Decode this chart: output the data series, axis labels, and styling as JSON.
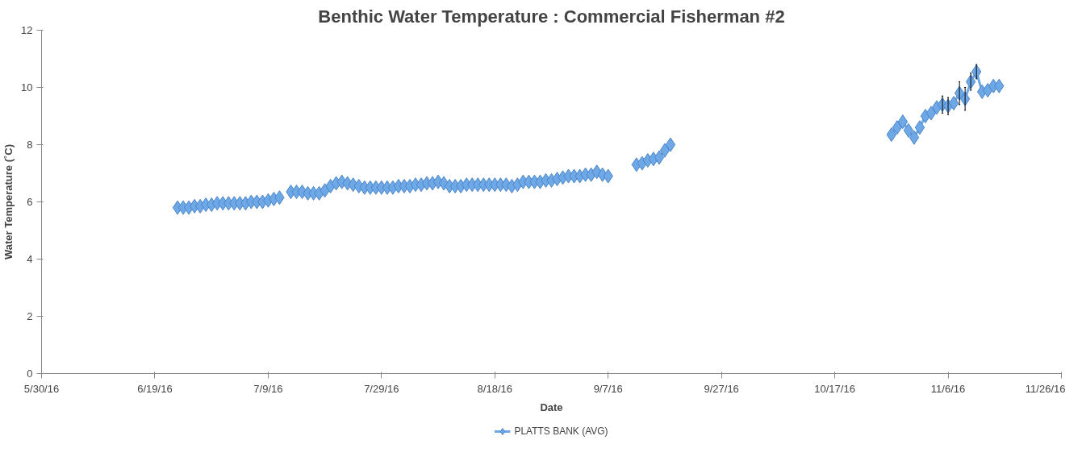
{
  "chart_data": {
    "type": "line",
    "title": "Benthic Water Temperature : Commercial Fisherman #2",
    "xlabel": "Date",
    "ylabel": "Water Temperature (˚C)",
    "xlim": [
      "2016-05-30",
      "2016-11-26"
    ],
    "xticks": [
      {
        "value": "2016-05-30",
        "label": "5/30/16"
      },
      {
        "value": "2016-06-19",
        "label": "6/19/16"
      },
      {
        "value": "2016-07-09",
        "label": "7/9/16"
      },
      {
        "value": "2016-07-29",
        "label": "7/29/16"
      },
      {
        "value": "2016-08-18",
        "label": "8/18/16"
      },
      {
        "value": "2016-09-07",
        "label": "9/7/16"
      },
      {
        "value": "2016-09-27",
        "label": "9/27/16"
      },
      {
        "value": "2016-10-17",
        "label": "10/17/16"
      },
      {
        "value": "2016-11-06",
        "label": "11/6/16"
      },
      {
        "value": "2016-11-26",
        "label": "11/26/16"
      }
    ],
    "ylim": [
      0,
      12
    ],
    "yticks": [
      0,
      2,
      4,
      6,
      8,
      10,
      12
    ],
    "grid": false,
    "legend": "bottom",
    "marker": "diamond",
    "line_style": "solid",
    "series": [
      {
        "name": "PLATTS BANK (AVG)",
        "color": "#6fa8e6",
        "x": [
          "2016-06-23",
          "2016-06-24",
          "2016-06-25",
          "2016-06-26",
          "2016-06-27",
          "2016-06-28",
          "2016-06-29",
          "2016-06-30",
          "2016-07-01",
          "2016-07-02",
          "2016-07-03",
          "2016-07-04",
          "2016-07-05",
          "2016-07-06",
          "2016-07-07",
          "2016-07-08",
          "2016-07-09",
          "2016-07-10",
          "2016-07-11",
          "2016-07-12",
          "2016-07-13",
          "2016-07-14",
          "2016-07-15",
          "2016-07-16",
          "2016-07-17",
          "2016-07-18",
          "2016-07-19",
          "2016-07-20",
          "2016-07-21",
          "2016-07-22",
          "2016-07-23",
          "2016-07-24",
          "2016-07-25",
          "2016-07-26",
          "2016-07-27",
          "2016-07-28",
          "2016-07-29",
          "2016-07-30",
          "2016-07-31",
          "2016-08-01",
          "2016-08-02",
          "2016-08-03",
          "2016-08-04",
          "2016-08-05",
          "2016-08-06",
          "2016-08-07",
          "2016-08-08",
          "2016-08-09",
          "2016-08-10",
          "2016-08-11",
          "2016-08-12",
          "2016-08-13",
          "2016-08-14",
          "2016-08-15",
          "2016-08-16",
          "2016-08-17",
          "2016-08-18",
          "2016-08-19",
          "2016-08-20",
          "2016-08-21",
          "2016-08-22",
          "2016-08-23",
          "2016-08-24",
          "2016-08-25",
          "2016-08-26",
          "2016-08-27",
          "2016-08-28",
          "2016-08-29",
          "2016-08-30",
          "2016-08-31",
          "2016-09-01",
          "2016-09-02",
          "2016-09-03",
          "2016-09-04",
          "2016-09-05",
          "2016-09-06",
          "2016-09-07",
          "2016-09-09",
          "2016-09-12",
          "2016-09-13",
          "2016-09-14",
          "2016-09-15",
          "2016-09-16",
          "2016-09-17",
          "2016-09-18",
          "2016-10-20",
          "2016-10-27",
          "2016-10-28",
          "2016-10-29",
          "2016-10-30",
          "2016-10-31",
          "2016-11-01",
          "2016-11-02",
          "2016-11-03",
          "2016-11-04",
          "2016-11-05",
          "2016-11-06",
          "2016-11-07",
          "2016-11-08",
          "2016-11-09",
          "2016-11-10",
          "2016-11-11",
          "2016-11-12",
          "2016-11-13",
          "2016-11-14",
          "2016-11-15"
        ],
        "values": [
          5.8,
          5.8,
          5.8,
          5.85,
          5.85,
          5.9,
          5.9,
          5.95,
          5.95,
          5.95,
          5.95,
          5.95,
          5.95,
          6.0,
          6.0,
          6.0,
          6.05,
          6.1,
          6.15,
          null,
          6.35,
          6.35,
          6.35,
          6.3,
          6.3,
          6.3,
          6.4,
          6.55,
          6.65,
          6.7,
          6.65,
          6.6,
          6.55,
          6.5,
          6.5,
          6.5,
          6.5,
          6.5,
          6.5,
          6.55,
          6.55,
          6.55,
          6.6,
          6.6,
          6.65,
          6.65,
          6.7,
          6.65,
          6.55,
          6.55,
          6.55,
          6.6,
          6.6,
          6.6,
          6.6,
          6.6,
          6.6,
          6.6,
          6.6,
          6.55,
          6.6,
          6.7,
          6.7,
          6.7,
          6.7,
          6.75,
          6.75,
          6.8,
          6.85,
          6.9,
          6.9,
          6.9,
          6.95,
          6.95,
          7.05,
          6.95,
          6.9,
          null,
          7.3,
          7.35,
          7.45,
          7.5,
          7.55,
          7.8,
          8.0,
          null,
          8.35,
          8.6,
          8.8,
          8.5,
          8.25,
          8.6,
          9.0,
          9.1,
          9.3,
          9.4,
          9.35,
          9.45,
          9.8,
          9.6,
          10.2,
          10.55,
          9.85,
          9.9,
          10.05,
          10.05
        ],
        "errors": [
          null,
          null,
          null,
          null,
          null,
          null,
          null,
          null,
          null,
          null,
          null,
          null,
          null,
          null,
          null,
          null,
          null,
          null,
          null,
          null,
          null,
          null,
          null,
          null,
          null,
          null,
          null,
          null,
          null,
          null,
          null,
          null,
          null,
          null,
          null,
          null,
          null,
          null,
          null,
          null,
          null,
          null,
          null,
          null,
          null,
          null,
          null,
          null,
          null,
          null,
          null,
          null,
          null,
          null,
          null,
          null,
          null,
          null,
          null,
          null,
          null,
          null,
          null,
          null,
          null,
          null,
          null,
          null,
          null,
          null,
          null,
          null,
          null,
          null,
          null,
          null,
          null,
          null,
          null,
          null,
          null,
          null,
          null,
          null,
          null,
          null,
          null,
          null,
          null,
          null,
          null,
          null,
          null,
          null,
          null,
          0.3,
          0.3,
          null,
          0.4,
          0.4,
          0.3,
          0.25,
          null,
          null,
          null,
          null
        ]
      }
    ]
  }
}
